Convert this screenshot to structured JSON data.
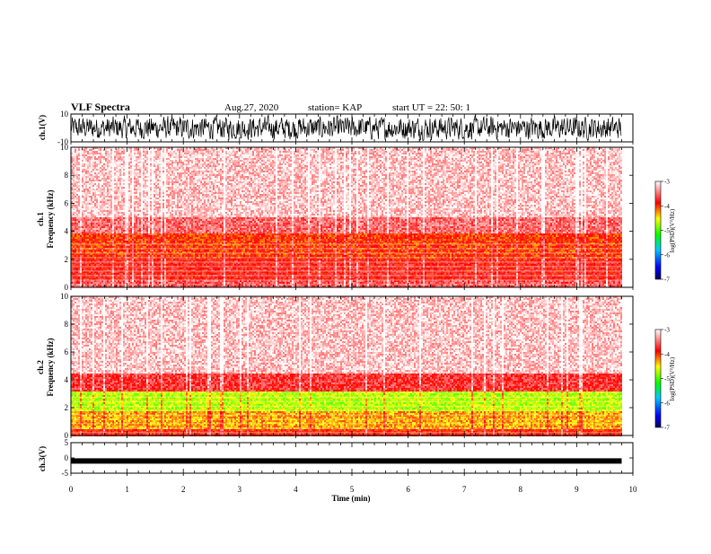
{
  "header": {
    "title": "VLF Spectra",
    "date": "Aug.27, 2020",
    "station": "station= KAP",
    "start_ut": "start UT =  22: 50: 1"
  },
  "chart_data": [
    {
      "type": "line",
      "panel": "ch1-waveform",
      "ylabel": "ch.1(V)",
      "ylim": [
        -10,
        10
      ],
      "yticks": [
        "10",
        "-10"
      ],
      "x_range_min": [
        0,
        9.8
      ],
      "description_values": "dense noisy waveform oscillating across most of the ±10 V range"
    },
    {
      "type": "heatmap",
      "panel": "ch1-spectrogram",
      "ylabel": "ch.1\nFrequency (kHz)",
      "ylabel_top": "ch.1",
      "ylabel_bottom": "Frequency (kHz)",
      "ylim": [
        0,
        10
      ],
      "yticks": [
        "0",
        "2",
        "4",
        "6",
        "8",
        "10"
      ],
      "x_range_min": [
        0,
        9.8
      ],
      "colorbar": {
        "label": "log(PSD)(V²/Hz)",
        "range": [
          -7,
          -3
        ],
        "ticks": [
          "-3",
          "-4",
          "-5",
          "-6",
          "-7"
        ]
      },
      "bands_khz": [
        {
          "from": 0,
          "to": 0.5,
          "level": -3.6
        },
        {
          "from": 0.5,
          "to": 2.0,
          "level": -3.8
        },
        {
          "from": 2.0,
          "to": 3.8,
          "level": -4.0
        },
        {
          "from": 3.8,
          "to": 5.0,
          "level": -3.5
        },
        {
          "from": 5.0,
          "to": 10,
          "level": -3.2
        }
      ]
    },
    {
      "type": "heatmap",
      "panel": "ch2-spectrogram",
      "ylabel_top": "ch.2",
      "ylabel_bottom": "Frequency (kHz)",
      "ylim": [
        0,
        10
      ],
      "yticks": [
        "0",
        "2",
        "4",
        "6",
        "8",
        "10"
      ],
      "x_range_min": [
        0,
        9.8
      ],
      "colorbar": {
        "label": "log(PSD)(V²/Hz)",
        "range": [
          -7,
          -3
        ],
        "ticks": [
          "-3",
          "-4",
          "-5",
          "-6",
          "-7"
        ]
      },
      "bands_khz": [
        {
          "from": 0,
          "to": 0.5,
          "level": -3.9
        },
        {
          "from": 0.5,
          "to": 1.8,
          "level": -4.3
        },
        {
          "from": 1.8,
          "to": 3.2,
          "level": -4.7
        },
        {
          "from": 3.2,
          "to": 4.5,
          "level": -3.7
        },
        {
          "from": 4.5,
          "to": 10,
          "level": -3.2
        }
      ]
    },
    {
      "type": "line",
      "panel": "ch3-waveform",
      "ylabel": "ch.3(V)",
      "ylim": [
        -5,
        5
      ],
      "yticks": [
        "5",
        "0",
        "-5"
      ],
      "x_range_min": [
        0,
        9.8
      ],
      "level_v": -1,
      "description_values": "flat thick trace near -1 V"
    }
  ],
  "xaxis": {
    "label": "Time (min)",
    "ticks": [
      "0",
      "1",
      "2",
      "3",
      "4",
      "5",
      "6",
      "7",
      "8",
      "9",
      "10"
    ],
    "range": [
      0,
      10
    ]
  },
  "colors": {
    "cmap": [
      "#000060",
      "#0000ff",
      "#00c0ff",
      "#00ff00",
      "#ffff00",
      "#ff0000",
      "#ffffff"
    ],
    "line": "#000000"
  }
}
